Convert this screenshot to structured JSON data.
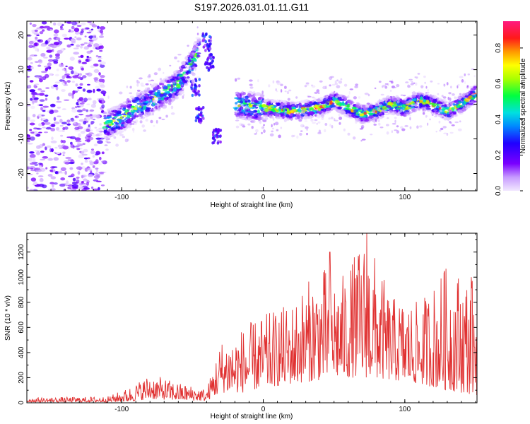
{
  "title": "S197.2026.031.01.11.G11",
  "chart_data": [
    {
      "type": "heatmap",
      "xlabel": "Height of straight line (km)",
      "ylabel": "Frequency (Hz)",
      "xlim": [
        -167,
        151
      ],
      "ylim": [
        -25,
        24
      ],
      "xticks": [
        -100,
        0,
        100
      ],
      "yticks": [
        -20,
        -10,
        0,
        10,
        20
      ],
      "colorbar": {
        "label": "Normalized spectral amplitude",
        "range": [
          0,
          0.95
        ],
        "ticks": [
          0.0,
          0.2,
          0.4,
          0.6,
          0.8
        ]
      },
      "ridge": [
        {
          "x": -112,
          "f": -6
        },
        {
          "x": -100,
          "f": -4
        },
        {
          "x": -90,
          "f": -1
        },
        {
          "x": -80,
          "f": 1
        },
        {
          "x": -70,
          "f": 3
        },
        {
          "x": -60,
          "f": 6
        },
        {
          "x": -52,
          "f": 11
        },
        {
          "x": -45,
          "f": 16
        },
        {
          "x": -20,
          "f": 0
        },
        {
          "x": 0,
          "f": -1
        },
        {
          "x": 20,
          "f": -2
        },
        {
          "x": 40,
          "f": -1
        },
        {
          "x": 50,
          "f": 1
        },
        {
          "x": 60,
          "f": -1
        },
        {
          "x": 70,
          "f": -3
        },
        {
          "x": 80,
          "f": -2
        },
        {
          "x": 90,
          "f": 0
        },
        {
          "x": 100,
          "f": -1
        },
        {
          "x": 110,
          "f": 1
        },
        {
          "x": 120,
          "f": 0
        },
        {
          "x": 130,
          "f": -2
        },
        {
          "x": 140,
          "f": 0
        },
        {
          "x": 150,
          "f": 3
        }
      ]
    },
    {
      "type": "line",
      "xlabel": "Height of straight line (km)",
      "ylabel": "SNR (10 * v/v)",
      "xlim": [
        -167,
        151
      ],
      "ylim": [
        0,
        1350
      ],
      "xticks": [
        -100,
        0,
        100
      ],
      "yticks": [
        0,
        200,
        400,
        600,
        800,
        1000,
        1200
      ],
      "series": [
        {
          "name": "SNR",
          "color": "#e03030",
          "envelope": [
            {
              "x": -167,
              "lo": 5,
              "hi": 40
            },
            {
              "x": -110,
              "lo": 5,
              "hi": 50
            },
            {
              "x": -95,
              "lo": 10,
              "hi": 120
            },
            {
              "x": -80,
              "lo": 30,
              "hi": 230
            },
            {
              "x": -60,
              "lo": 20,
              "hi": 160
            },
            {
              "x": -40,
              "lo": 15,
              "hi": 110
            },
            {
              "x": -30,
              "lo": 80,
              "hi": 500
            },
            {
              "x": -15,
              "lo": 80,
              "hi": 600
            },
            {
              "x": 0,
              "lo": 120,
              "hi": 700
            },
            {
              "x": 20,
              "lo": 150,
              "hi": 800
            },
            {
              "x": 40,
              "lo": 180,
              "hi": 1100
            },
            {
              "x": 55,
              "lo": 200,
              "hi": 1000
            },
            {
              "x": 73,
              "lo": 200,
              "hi": 1350
            },
            {
              "x": 90,
              "lo": 180,
              "hi": 850
            },
            {
              "x": 110,
              "lo": 150,
              "hi": 800
            },
            {
              "x": 130,
              "lo": 100,
              "hi": 1100
            },
            {
              "x": 151,
              "lo": 60,
              "hi": 1000
            }
          ],
          "peaks": [
            {
              "x": 47,
              "value": 1200
            },
            {
              "x": 73,
              "value": 1350
            },
            {
              "x": 128,
              "value": 1050
            },
            {
              "x": 147,
              "value": 1000
            }
          ]
        }
      ]
    }
  ]
}
